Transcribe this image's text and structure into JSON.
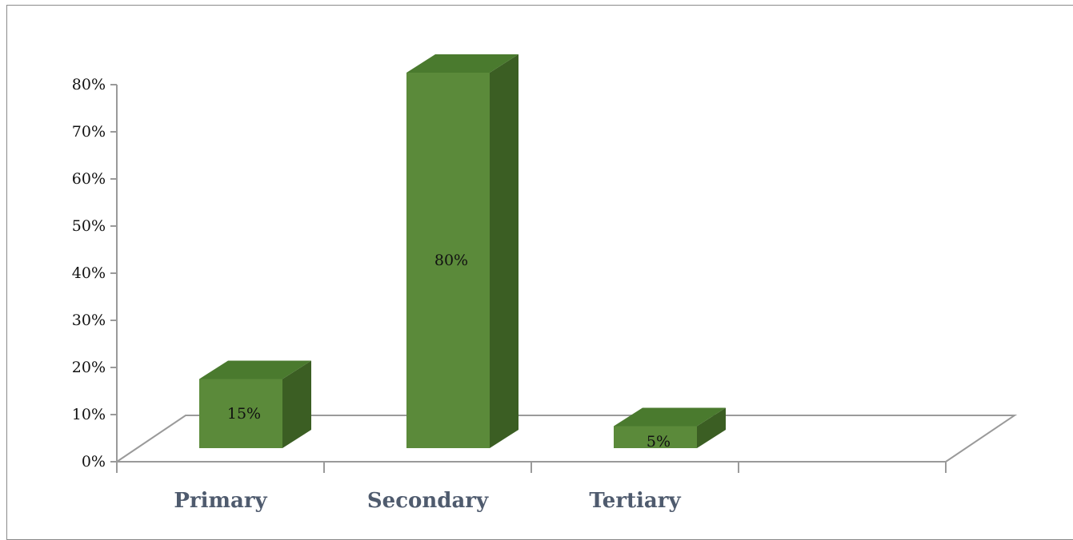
{
  "chart_data": {
    "type": "bar",
    "style": "3d-column",
    "categories": [
      "Primary",
      "Secondary",
      "Tertiary"
    ],
    "values": [
      15,
      80,
      5
    ],
    "data_labels": [
      "15%",
      "80%",
      "5%"
    ],
    "yticks": [
      "0%",
      "10%",
      "20%",
      "30%",
      "40%",
      "50%",
      "60%",
      "70%",
      "80%"
    ],
    "ylim": [
      0,
      80
    ],
    "grid": false,
    "legend": "none",
    "colors": {
      "front": "#5b8a3a",
      "top": "#4a7a2e",
      "side": "#3b5e23",
      "label": "#4f5b6e"
    }
  }
}
